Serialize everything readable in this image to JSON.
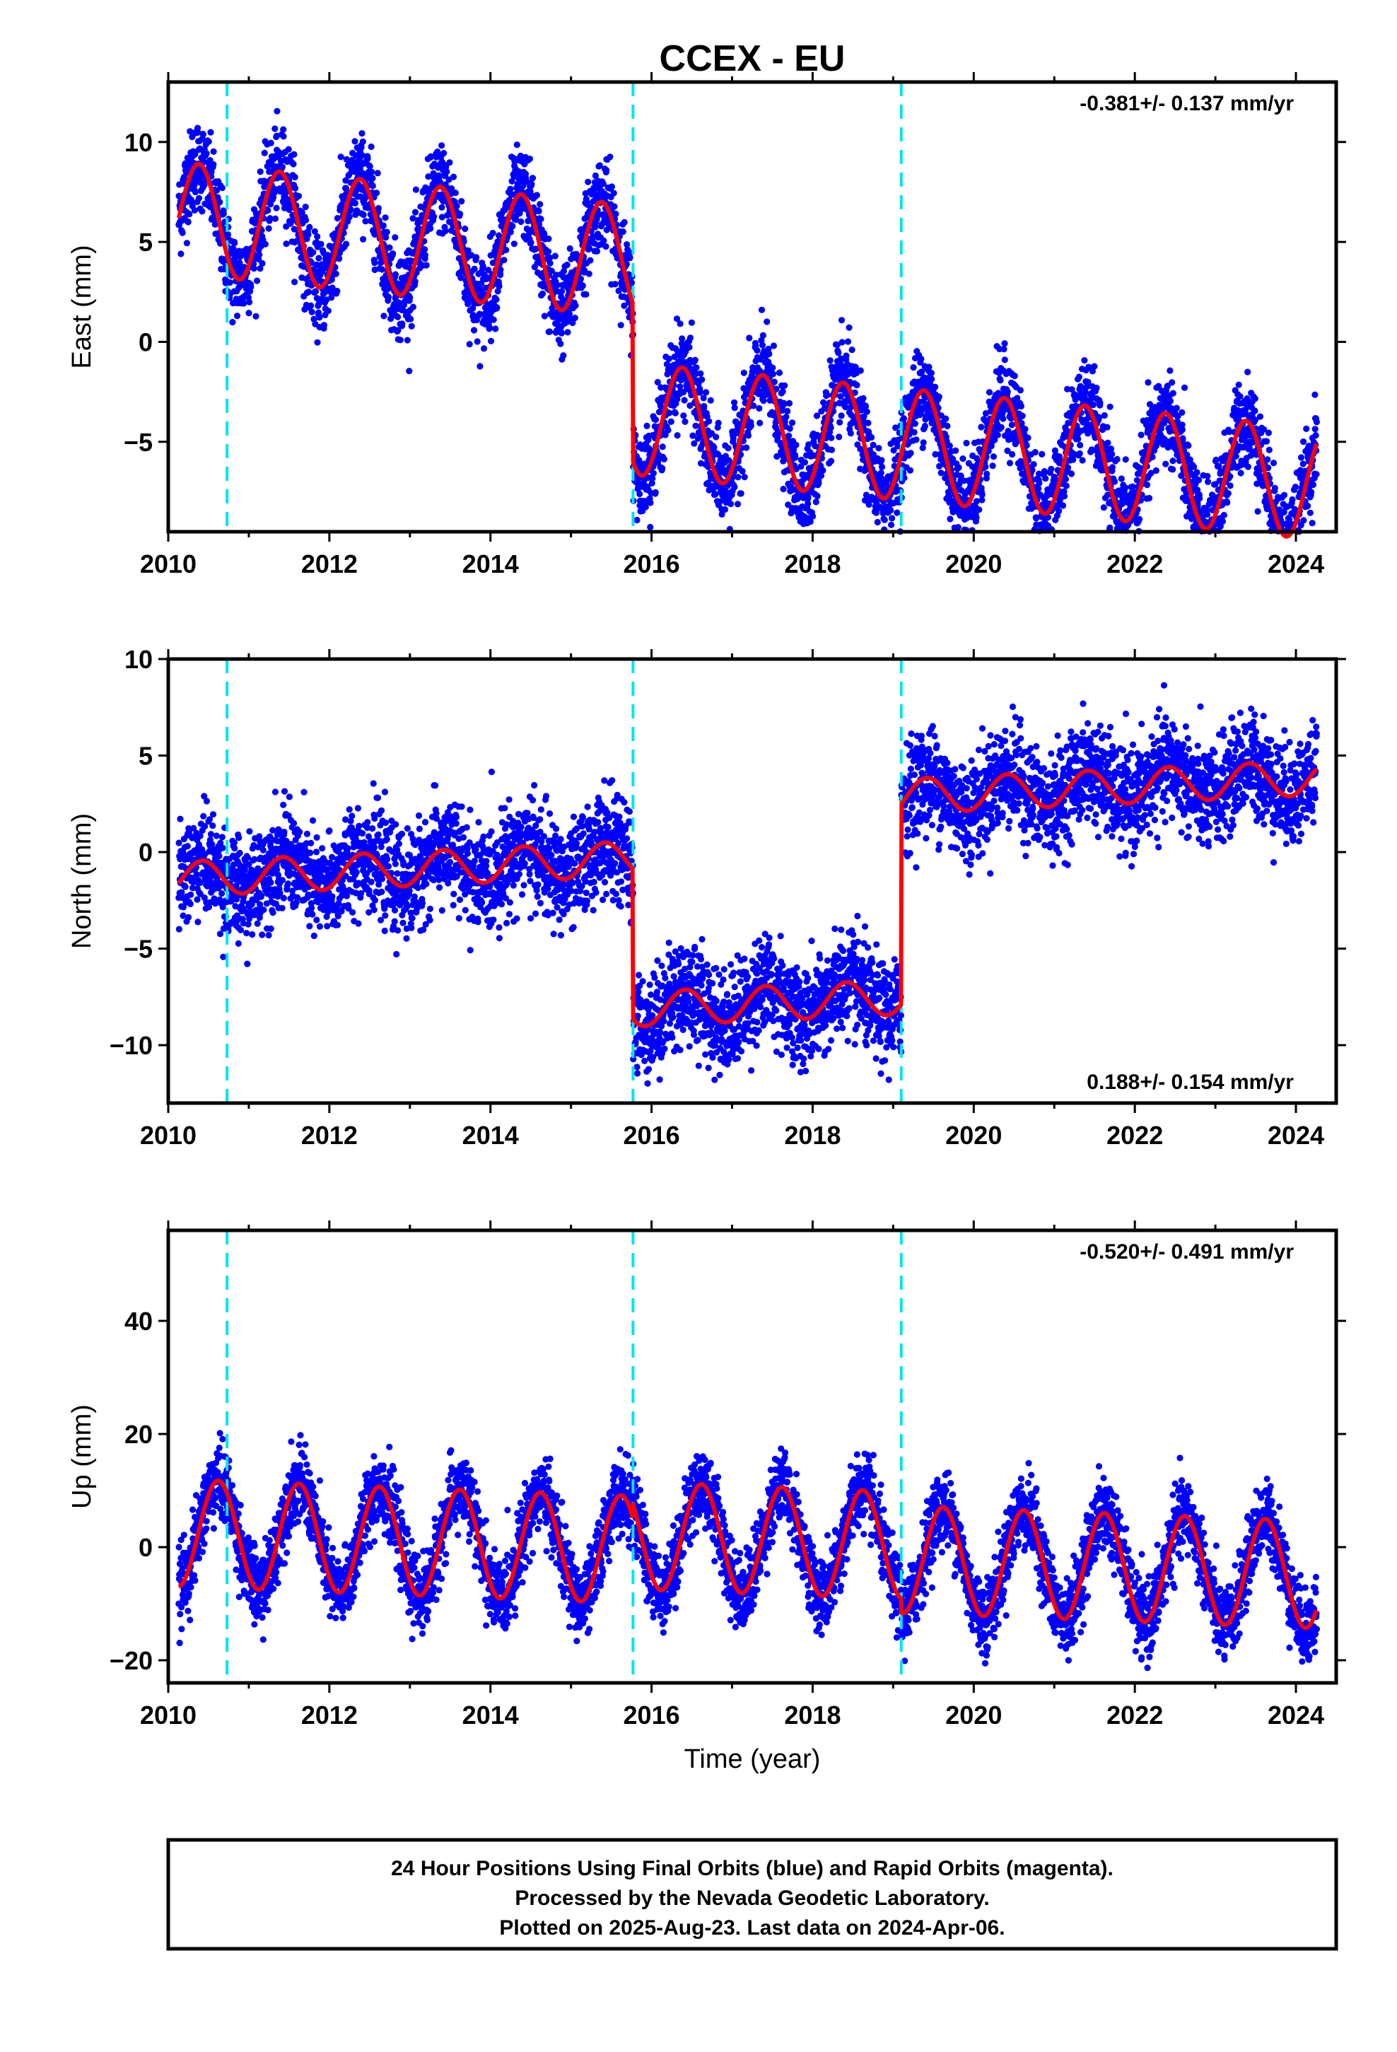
{
  "chart_data": {
    "type": "scatter",
    "title": "CCEX - EU",
    "xlabel": "Time (year)",
    "xlim": [
      2010.0,
      2024.5
    ],
    "x_ticks": [
      "2010",
      "2012",
      "2014",
      "2016",
      "2018",
      "2020",
      "2022",
      "2024"
    ],
    "x_tick_values": [
      2010,
      2012,
      2014,
      2016,
      2018,
      2020,
      2022,
      2024
    ],
    "data_start": 2010.13,
    "data_end": 2024.26,
    "equipment_changes": [
      2010.73,
      2015.77,
      2019.1
    ],
    "series_colors": {
      "data": "#0000ff",
      "model": "#ff0000",
      "equipment_change": "#00e5ee"
    },
    "grid": false,
    "panels": [
      {
        "name": "east",
        "ylabel": "East (mm)",
        "ylim": [
          -9.5,
          13.0
        ],
        "y_ticks": [
          "10",
          "5",
          "0",
          "−5"
        ],
        "y_tick_values": [
          10,
          5,
          0,
          -5
        ],
        "rate": "-0.381+/- 0.137 mm/yr",
        "rate_position": "top-right",
        "model": {
          "offsets": [
            [
              2010.0,
              6.2
            ],
            [
              2015.77,
              -1.7
            ]
          ],
          "trend_mm_per_yr": -0.381,
          "annual_amplitude": 2.8,
          "annual_peak": 0.38,
          "noise_mm": 1.1
        }
      },
      {
        "name": "north",
        "ylabel": "North (mm)",
        "ylim": [
          -13.0,
          10.0
        ],
        "y_ticks": [
          "10",
          "5",
          "0",
          "−5",
          "−10"
        ],
        "y_tick_values": [
          10,
          5,
          0,
          -5,
          -10
        ],
        "rate": "0.188+/- 0.154 mm/yr",
        "rate_position": "bottom-right",
        "model": {
          "offsets": [
            [
              2010.0,
              -1.4
            ],
            [
              2015.77,
              -9.2
            ],
            [
              2019.1,
              1.2
            ]
          ],
          "trend_mm_per_yr": 0.188,
          "annual_amplitude": 0.9,
          "annual_peak": 0.42,
          "noise_mm": 1.3
        }
      },
      {
        "name": "up",
        "ylabel": "Up (mm)",
        "ylim": [
          -24.0,
          56.0
        ],
        "y_ticks": [
          "40",
          "20",
          "0",
          "−20"
        ],
        "y_tick_values": [
          40,
          20,
          0,
          -20
        ],
        "rate": "-0.520+/- 0.491 mm/yr",
        "rate_position": "top-right",
        "model": {
          "offsets": [
            [
              2010.0,
              2.5
            ],
            [
              2015.77,
              5.0
            ],
            [
              2019.1,
              2.5
            ]
          ],
          "trend_mm_per_yr": -0.52,
          "annual_amplitude": 9.5,
          "annual_peak": 0.62,
          "noise_mm": 3.3
        }
      }
    ]
  },
  "footer": {
    "line1": "24 Hour Positions Using Final Orbits (blue) and Rapid Orbits (magenta).",
    "line2": "Processed by the Nevada Geodetic Laboratory.",
    "line3": "Plotted on 2025-Aug-23. Last data on 2024-Apr-06."
  }
}
